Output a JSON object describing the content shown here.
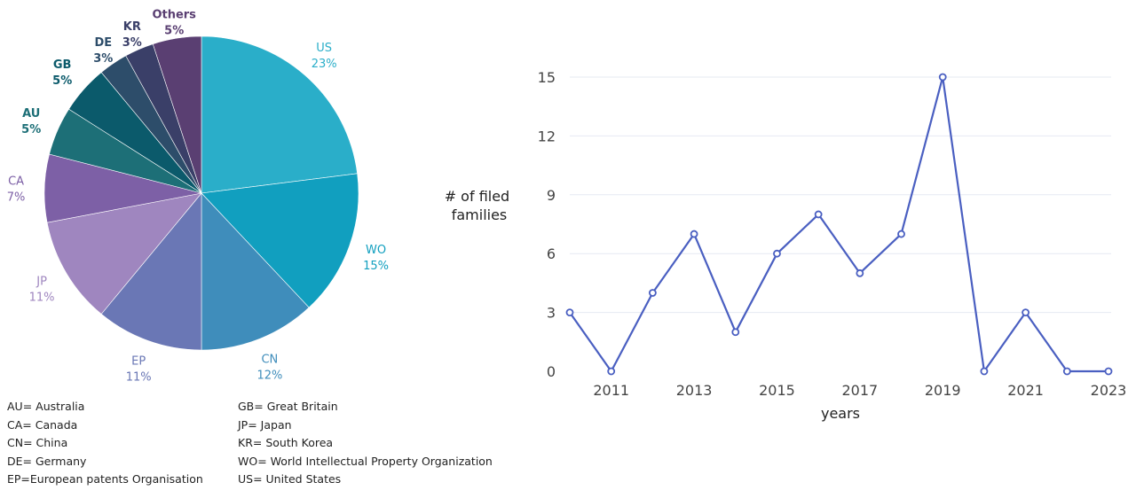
{
  "chart_data": [
    {
      "type": "pie",
      "slices": [
        {
          "label": "US",
          "value": 23,
          "percent_label": "23%",
          "color": "#2aaec9"
        },
        {
          "label": "WO",
          "value": 15,
          "percent_label": "15%",
          "color": "#119fbf"
        },
        {
          "label": "CN",
          "value": 12,
          "percent_label": "12%",
          "color": "#3f8dbb"
        },
        {
          "label": "EP",
          "value": 11,
          "percent_label": "11%",
          "color": "#6a77b5"
        },
        {
          "label": "JP",
          "value": 11,
          "percent_label": "11%",
          "color": "#9f86bf"
        },
        {
          "label": "CA",
          "value": 7,
          "percent_label": "7%",
          "color": "#7d60a6"
        },
        {
          "label": "AU",
          "value": 5,
          "percent_label": "5%",
          "color": "#1d6f77"
        },
        {
          "label": "GB",
          "value": 5,
          "percent_label": "5%",
          "color": "#0b5a6b"
        },
        {
          "label": "DE",
          "value": 3,
          "percent_label": "3%",
          "color": "#2d4d6a"
        },
        {
          "label": "KR",
          "value": 3,
          "percent_label": "3%",
          "color": "#3a3f68"
        },
        {
          "label": "Others",
          "value": 5,
          "percent_label": "5%",
          "color": "#5a3f72"
        }
      ],
      "legend": {
        "left": [
          "AU= Australia",
          "CA= Canada",
          "CN= China",
          "DE= Germany",
          "EP=European patents Organisation"
        ],
        "right": [
          "GB= Great Britain",
          "JP= Japan",
          "KR= South Korea",
          "WO= World Intellectual Property  Organization",
          "US= United States"
        ]
      }
    },
    {
      "type": "line",
      "x": [
        2010,
        2011,
        2012,
        2013,
        2014,
        2015,
        2016,
        2017,
        2018,
        2019,
        2020,
        2021,
        2022,
        2023
      ],
      "series": [
        {
          "values": [
            3,
            0,
            4,
            7,
            2,
            6,
            8,
            5,
            7,
            15,
            0,
            3,
            0,
            0
          ],
          "color": "#4a5fc1"
        }
      ],
      "xlabel": "years",
      "ylabel": [
        "# of filed",
        "families"
      ],
      "xticks": [
        "2011",
        "2013",
        "2015",
        "2017",
        "2019",
        "2021",
        "2023"
      ],
      "yticks": [
        "0",
        "3",
        "6",
        "9",
        "12",
        "15"
      ],
      "xlim": [
        2010,
        2023
      ],
      "ylim": [
        0,
        15
      ],
      "grid": true
    }
  ]
}
